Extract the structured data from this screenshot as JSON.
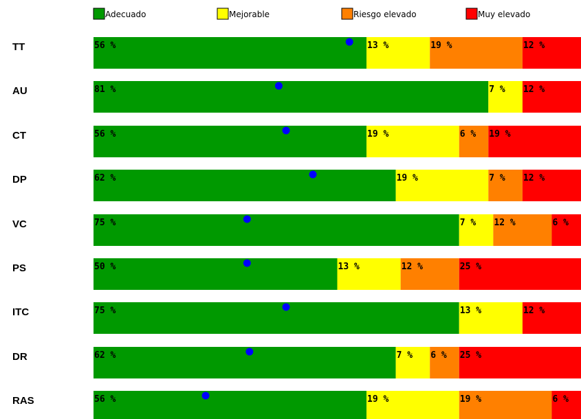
{
  "chart_data": {
    "type": "bar",
    "stacked": true,
    "orientation": "horizontal",
    "legend_position": "top",
    "categories": [
      "TT",
      "AU",
      "CT",
      "DP",
      "VC",
      "PS",
      "ITC",
      "DR",
      "RAS"
    ],
    "series": [
      {
        "name": "Adecuado",
        "color": "#009900",
        "values": [
          56,
          81,
          56,
          62,
          75,
          50,
          75,
          62,
          56
        ],
        "labels": [
          "56 %",
          "81 %",
          "56 %",
          "62 %",
          "75 %",
          "50 %",
          "75 %",
          "62 %",
          "56 %"
        ]
      },
      {
        "name": "Mejorable",
        "color": "#ffff00",
        "values": [
          13,
          7,
          19,
          19,
          7,
          13,
          13,
          7,
          19
        ],
        "labels": [
          "13 %",
          "7 %",
          "19 %",
          "19 %",
          "7 %",
          "13 %",
          "13 %",
          "7 %",
          "19 %"
        ]
      },
      {
        "name": "Riesgo elevado",
        "color": "#ff8000",
        "values": [
          19,
          0,
          6,
          7,
          12,
          12,
          0,
          6,
          19
        ],
        "labels": [
          "19 %",
          "",
          "6 %",
          "7 %",
          "12 %",
          "12 %",
          "",
          "6 %",
          "19 %"
        ]
      },
      {
        "name": "Muy elevado",
        "color": "#ff0000",
        "values": [
          12,
          12,
          19,
          12,
          6,
          25,
          12,
          25,
          6
        ],
        "labels": [
          "12 %",
          "12 %",
          "19 %",
          "12 %",
          "6 %",
          "25 %",
          "12 %",
          "25 %",
          "6 %"
        ]
      }
    ],
    "markers": {
      "color": "#0000ff",
      "values": [
        52.5,
        38,
        39.5,
        45,
        31.5,
        31.5,
        39.5,
        32,
        23
      ]
    },
    "xlim": [
      0,
      100
    ]
  }
}
